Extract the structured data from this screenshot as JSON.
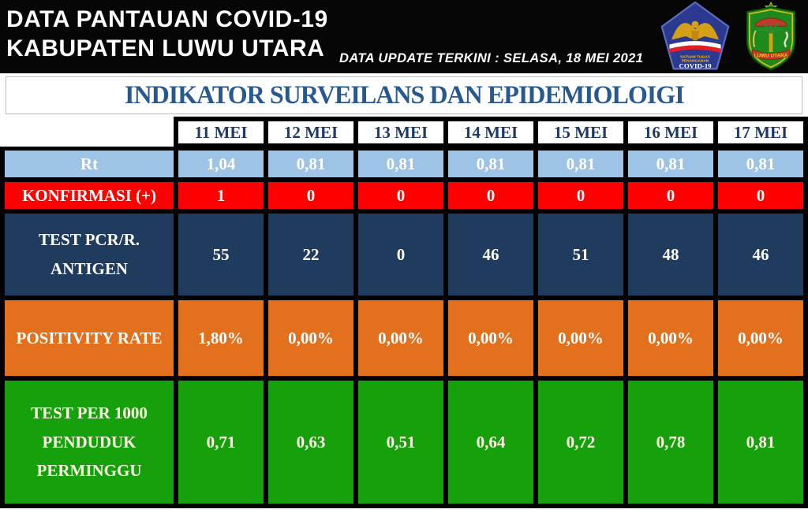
{
  "header": {
    "title_line1": "DATA PANTAUAN COVID-19",
    "title_line2": "KABUPATEN LUWU UTARA",
    "update_text": "DATA UPDATE TERKINI : SELASA, 18 MEI 2021",
    "logos": {
      "satgas": {
        "name": "satgas-covid19-logo",
        "line1": "SATUAN TUGAS",
        "line2": "PENANGANAN",
        "line3": "COVID-19",
        "bg_color": "#2B3990"
      },
      "luwu_utara": {
        "name": "luwu-utara-regency-logo",
        "label": "LUWU UTARA",
        "bg_color": "#1E8A1E"
      }
    }
  },
  "main_title": "INDIKATOR SURVEILANS DAN EPIDEMIOLOIGI",
  "colors": {
    "topbar_bg": "#060606",
    "main_title_text": "#27588E",
    "date_header_text": "#1F3864",
    "border": "#000000"
  },
  "table": {
    "date_columns": [
      "11 MEI",
      "12 MEI",
      "13 MEI",
      "14 MEI",
      "15 MEI",
      "16 MEI",
      "17 MEI"
    ],
    "rows": [
      {
        "id": "rt",
        "label": "Rt",
        "values": [
          "1,04",
          "0,81",
          "0,81",
          "0,81",
          "0,81",
          "0,81",
          "0,81"
        ],
        "bg": "#9DC3E6",
        "text": "#FFFFFF"
      },
      {
        "id": "konfirmasi",
        "label": "KONFIRMASI (+)",
        "values": [
          "1",
          "0",
          "0",
          "0",
          "0",
          "0",
          "0"
        ],
        "bg": "#FF0000",
        "text": "#FFFFFF"
      },
      {
        "id": "test-pcr",
        "label": "TEST PCR/R. ANTIGEN",
        "values": [
          "55",
          "22",
          "0",
          "46",
          "51",
          "48",
          "46"
        ],
        "bg": "#1F3B5E",
        "text": "#FFFFFF"
      },
      {
        "id": "positivity-rate",
        "label": "POSITIVITY RATE",
        "values": [
          "1,80%",
          "0,00%",
          "0,00%",
          "0,00%",
          "0,00%",
          "0,00%",
          "0,00%"
        ],
        "bg": "#E2701C",
        "text": "#FFFFFF"
      },
      {
        "id": "test-per-1000",
        "label": "TEST PER 1000 PENDUDUK PERMINGGU",
        "values": [
          "0,71",
          "0,63",
          "0,51",
          "0,64",
          "0,72",
          "0,78",
          "0,81"
        ],
        "bg": "#16A10C",
        "text": "#FCFAE4"
      }
    ]
  },
  "chart_data": {
    "type": "table",
    "title": "INDIKATOR SURVEILANS DAN EPIDEMIOLOIGI",
    "categories": [
      "11 MEI",
      "12 MEI",
      "13 MEI",
      "14 MEI",
      "15 MEI",
      "16 MEI",
      "17 MEI"
    ],
    "series": [
      {
        "name": "Rt",
        "values": [
          1.04,
          0.81,
          0.81,
          0.81,
          0.81,
          0.81,
          0.81
        ]
      },
      {
        "name": "KONFIRMASI (+)",
        "values": [
          1,
          0,
          0,
          0,
          0,
          0,
          0
        ]
      },
      {
        "name": "TEST PCR/R. ANTIGEN",
        "values": [
          55,
          22,
          0,
          46,
          51,
          48,
          46
        ]
      },
      {
        "name": "POSITIVITY RATE (%)",
        "values": [
          1.8,
          0.0,
          0.0,
          0.0,
          0.0,
          0.0,
          0.0
        ]
      },
      {
        "name": "TEST PER 1000 PENDUDUK PERMINGGU",
        "values": [
          0.71,
          0.63,
          0.51,
          0.64,
          0.72,
          0.78,
          0.81
        ]
      }
    ]
  }
}
